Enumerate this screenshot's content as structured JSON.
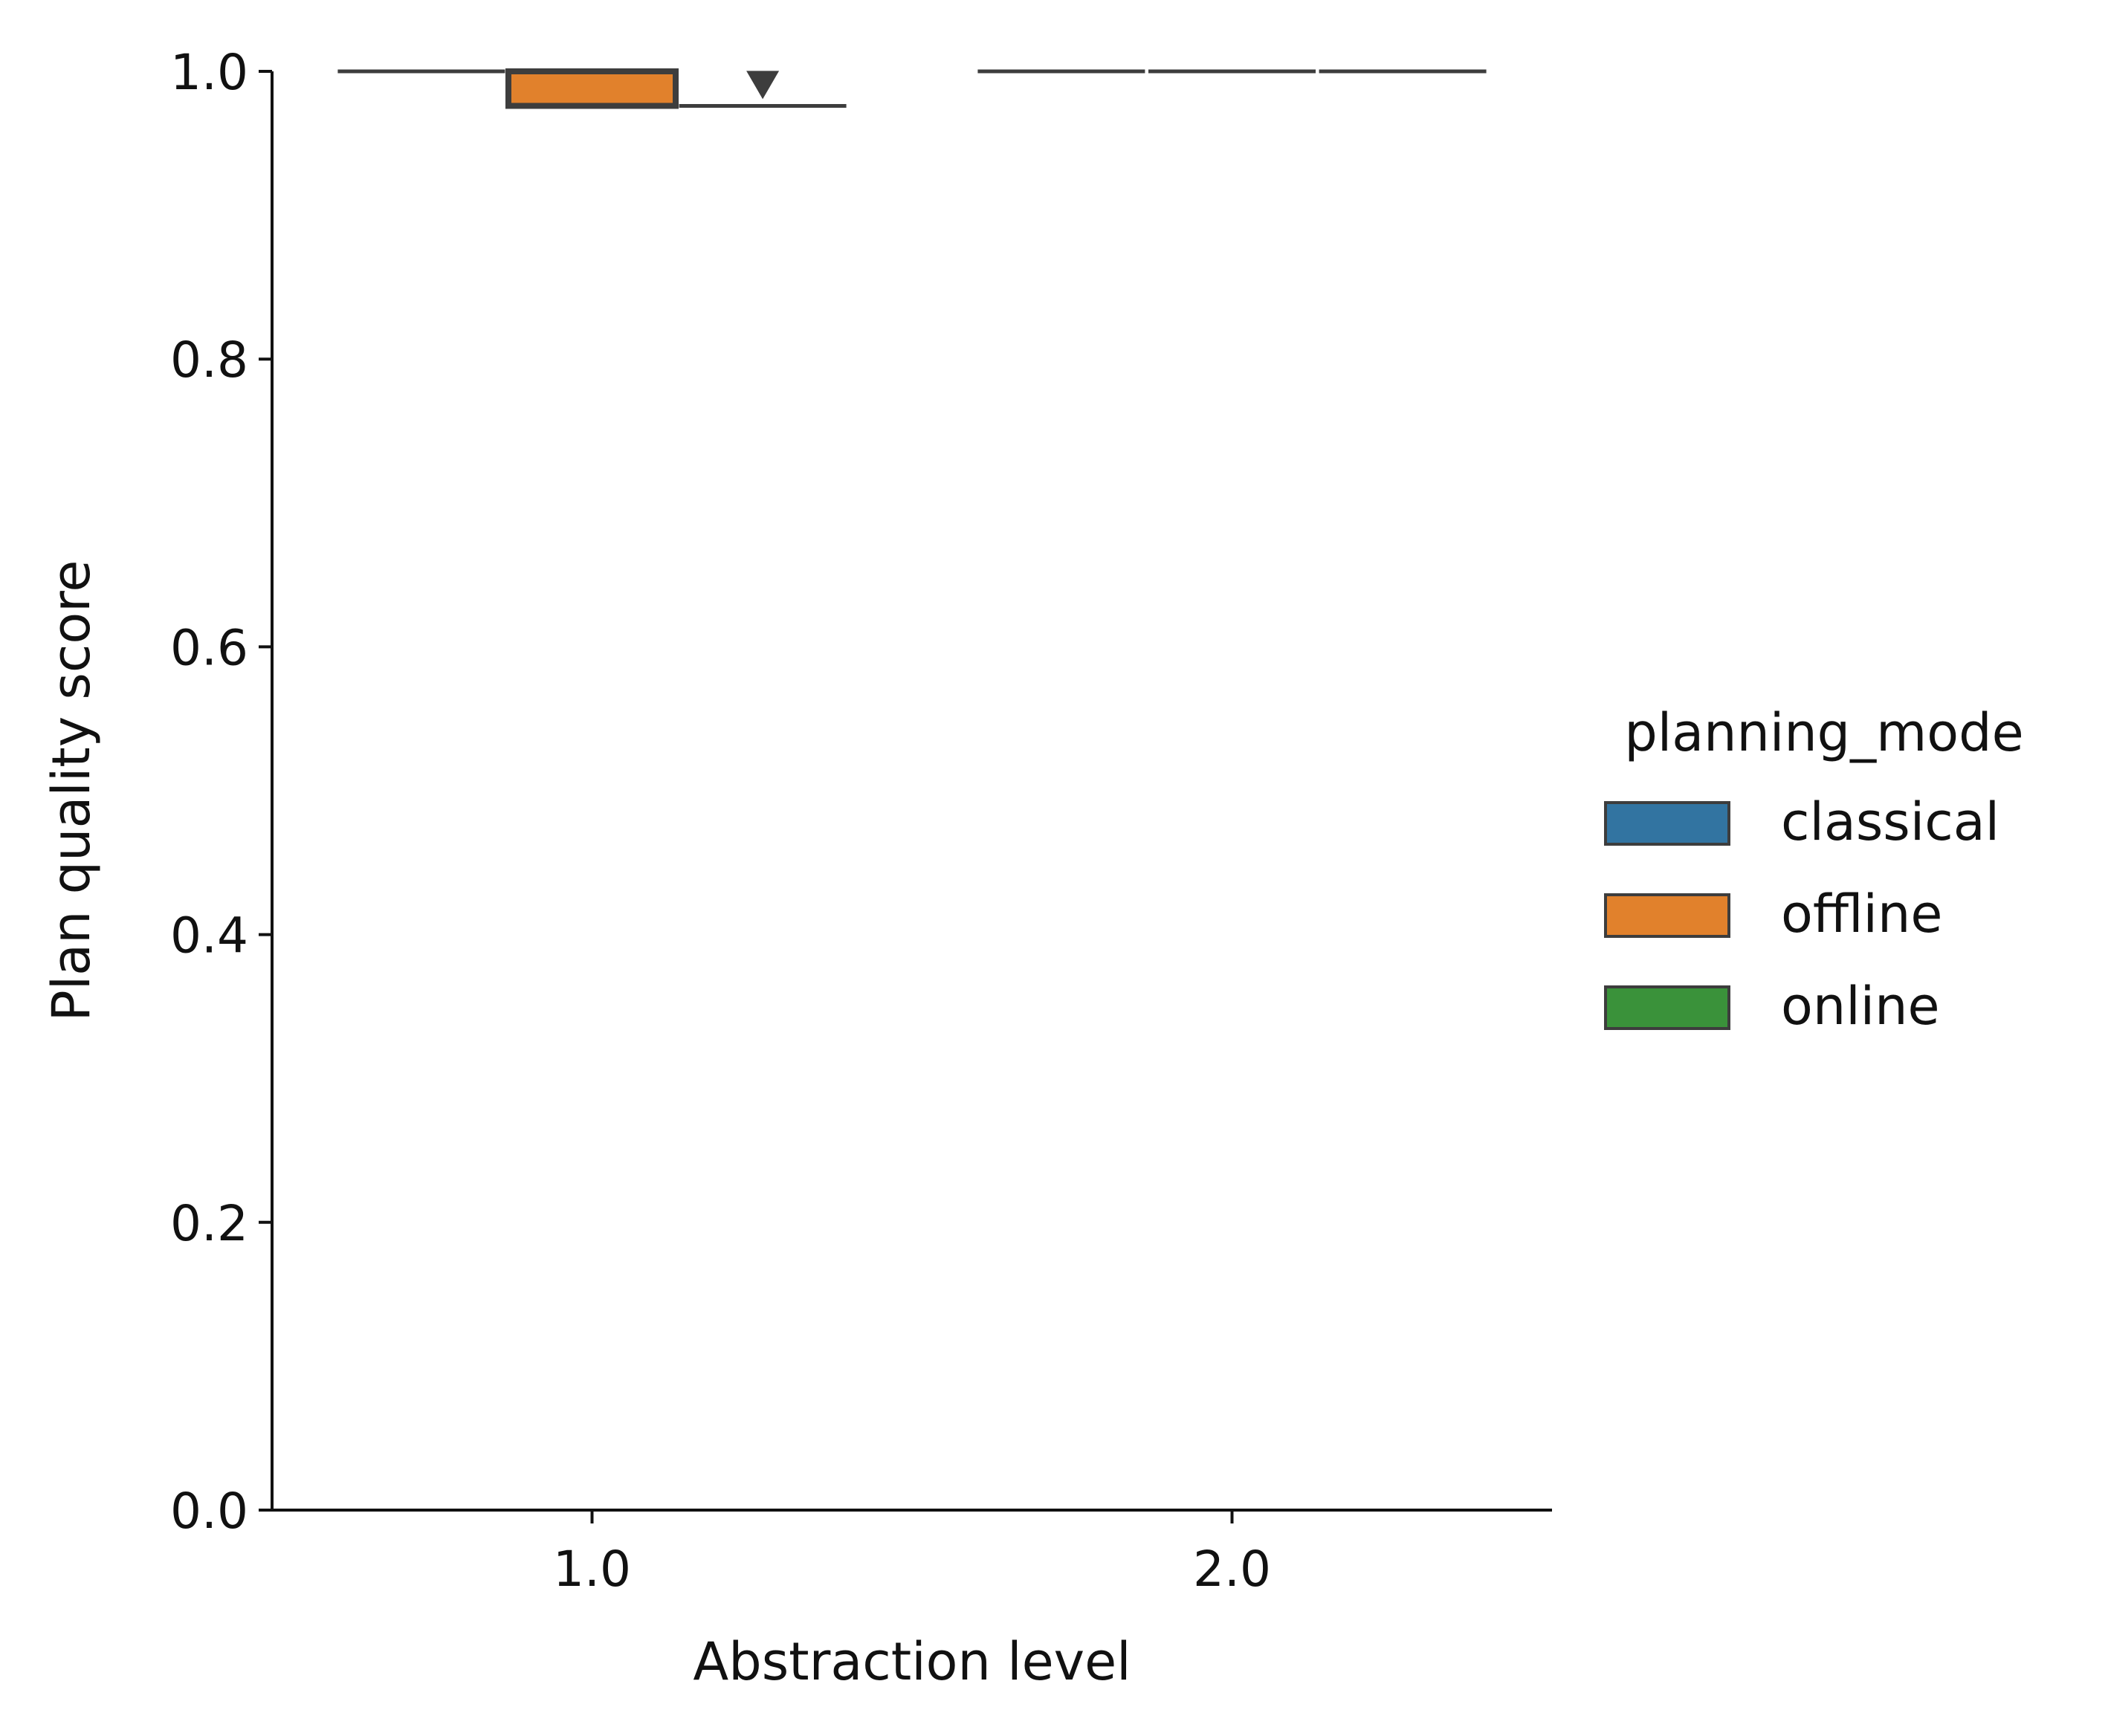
{
  "chart_data": {
    "type": "boxplot",
    "xlabel": "Abstraction level",
    "ylabel": "Plan quality score",
    "categories": [
      "1.0",
      "2.0"
    ],
    "ylim": [
      0.0,
      1.0
    ],
    "yticks": [
      "0.0",
      "0.2",
      "0.4",
      "0.6",
      "0.8",
      "1.0"
    ],
    "grid": false,
    "legend": {
      "title": "planning_mode",
      "position": "right",
      "entries": [
        {
          "label": "classical",
          "color": "#3274a1"
        },
        {
          "label": "offline",
          "color": "#e1812c"
        },
        {
          "label": "online",
          "color": "#3a923a"
        }
      ]
    },
    "series": [
      {
        "name": "classical",
        "color": "#3274a1",
        "boxes": [
          {
            "category": "1.0",
            "q1": 1.0,
            "median": 1.0,
            "q3": 1.0,
            "whisker_low": 1.0,
            "whisker_high": 1.0,
            "outliers": []
          },
          {
            "category": "2.0",
            "q1": 1.0,
            "median": 1.0,
            "q3": 1.0,
            "whisker_low": 1.0,
            "whisker_high": 1.0,
            "outliers": []
          }
        ]
      },
      {
        "name": "offline",
        "color": "#e1812c",
        "boxes": [
          {
            "category": "1.0",
            "q1": 0.976,
            "median": 1.0,
            "q3": 1.0,
            "whisker_low": 0.976,
            "whisker_high": 1.0,
            "outliers": []
          },
          {
            "category": "2.0",
            "q1": 1.0,
            "median": 1.0,
            "q3": 1.0,
            "whisker_low": 1.0,
            "whisker_high": 1.0,
            "outliers": []
          }
        ]
      },
      {
        "name": "online",
        "color": "#3a923a",
        "boxes": [
          {
            "category": "1.0",
            "q1": 0.976,
            "median": 0.976,
            "q3": 0.976,
            "whisker_low": 0.976,
            "whisker_high": 0.976,
            "outliers": [
              0.99
            ]
          },
          {
            "category": "2.0",
            "q1": 1.0,
            "median": 1.0,
            "q3": 1.0,
            "whisker_low": 1.0,
            "whisker_high": 1.0,
            "outliers": []
          }
        ]
      }
    ]
  }
}
